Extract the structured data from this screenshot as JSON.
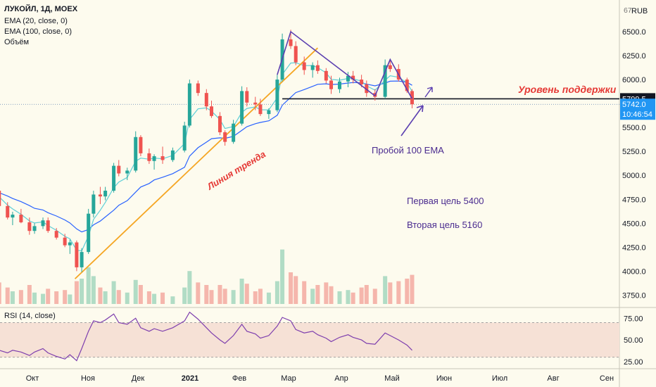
{
  "header": {
    "symbol_line": "ЛУКОЙЛ, 1Д, MOEX",
    "indicators": [
      "EMA (20, close, 0)",
      "EMA (100, close, 0)",
      "Объём"
    ],
    "currency": "RUB",
    "currency_prefix": "67"
  },
  "price_axis": {
    "ticks": [
      "6500.0",
      "6250.0",
      "6000.0",
      "5500.0",
      "5250.0",
      "5000.0",
      "4750.0",
      "4500.0",
      "4250.0",
      "4000.0",
      "3750.0"
    ],
    "support_label": "5799.5",
    "last_price": "5742.0",
    "countdown": "10:46:54"
  },
  "annotations": {
    "support_level": "Уровень поддержки",
    "trend_line": "Линия тренда",
    "ema_break": "Пробой 100 EMA",
    "target_1": "Первая цель 5400",
    "target_2": "Вторая цель 5160"
  },
  "rsi": {
    "label": "RSI (14, close)",
    "ticks": [
      "75.00",
      "50.00",
      "25.00"
    ]
  },
  "time_axis": {
    "labels": [
      "Окт",
      "Ноя",
      "Дек",
      "2021",
      "Фев",
      "Мар",
      "Апр",
      "Май",
      "Июн",
      "Июл",
      "Авг",
      "Сен"
    ]
  },
  "colors": {
    "background": "#fdfbee",
    "up_candle": "#26a69a",
    "down_candle": "#ef5350",
    "ema20": "#5fcfd7",
    "ema100": "#2962ff",
    "trend_line": "#f5a623",
    "support_line": "#131722",
    "annotation_purple": "#4a2b8f",
    "annotation_red": "#e53935",
    "rsi_line": "#7e3fae",
    "rsi_band": "#f6e1d6"
  },
  "chart_data": {
    "type": "candlestick",
    "price_axis": {
      "min": 3700,
      "max": 6700
    },
    "support_level": 5799.5,
    "last_price": 5742.0,
    "trend_line": {
      "from": {
        "date": "2020-11-01",
        "price": 3920
      },
      "to": {
        "date": "2021-03-25",
        "price": 6330
      }
    },
    "ohlc": [
      [
        "2020-09-14",
        4880,
        4920,
        4820,
        4840
      ],
      [
        "2020-09-17",
        4840,
        4870,
        4640,
        4680
      ],
      [
        "2020-09-22",
        4680,
        4720,
        4540,
        4560
      ],
      [
        "2020-09-25",
        4560,
        4620,
        4480,
        4590
      ],
      [
        "2020-09-30",
        4590,
        4650,
        4500,
        4510
      ],
      [
        "2020-10-05",
        4510,
        4560,
        4380,
        4420
      ],
      [
        "2020-10-08",
        4420,
        4500,
        4390,
        4470
      ],
      [
        "2020-10-13",
        4470,
        4560,
        4440,
        4530
      ],
      [
        "2020-10-16",
        4530,
        4560,
        4400,
        4420
      ],
      [
        "2020-10-21",
        4420,
        4450,
        4330,
        4350
      ],
      [
        "2020-10-26",
        4350,
        4390,
        4250,
        4270
      ],
      [
        "2020-10-29",
        4270,
        4330,
        4180,
        4300
      ],
      [
        "2020-11-02",
        4300,
        4320,
        4000,
        4040
      ],
      [
        "2020-11-05",
        4040,
        4240,
        3990,
        4200
      ],
      [
        "2020-11-09",
        4200,
        4650,
        4180,
        4600
      ],
      [
        "2020-11-12",
        4600,
        4840,
        4560,
        4800
      ],
      [
        "2020-11-16",
        4800,
        4880,
        4700,
        4780
      ],
      [
        "2020-11-19",
        4780,
        4880,
        4740,
        4840
      ],
      [
        "2020-11-24",
        4840,
        5130,
        4820,
        5100
      ],
      [
        "2020-11-27",
        5100,
        5160,
        4990,
        5020
      ],
      [
        "2020-12-02",
        5020,
        5080,
        4950,
        5050
      ],
      [
        "2020-12-07",
        5050,
        5460,
        5030,
        5400
      ],
      [
        "2020-12-10",
        5400,
        5420,
        5200,
        5230
      ],
      [
        "2020-12-15",
        5230,
        5280,
        5120,
        5150
      ],
      [
        "2020-12-18",
        5150,
        5220,
        5060,
        5200
      ],
      [
        "2020-12-23",
        5200,
        5300,
        5120,
        5160
      ],
      [
        "2020-12-29",
        5160,
        5290,
        5140,
        5260
      ],
      [
        "2021-01-05",
        5260,
        5560,
        5240,
        5520
      ],
      [
        "2021-01-08",
        5520,
        6000,
        5500,
        5960
      ],
      [
        "2021-01-13",
        5960,
        5990,
        5830,
        5860
      ],
      [
        "2021-01-18",
        5860,
        5900,
        5680,
        5720
      ],
      [
        "2021-01-21",
        5720,
        5780,
        5600,
        5620
      ],
      [
        "2021-01-26",
        5620,
        5660,
        5420,
        5450
      ],
      [
        "2021-01-29",
        5450,
        5470,
        5310,
        5350
      ],
      [
        "2021-02-03",
        5350,
        5580,
        5330,
        5540
      ],
      [
        "2021-02-08",
        5540,
        5930,
        5520,
        5880
      ],
      [
        "2021-02-11",
        5880,
        5920,
        5720,
        5760
      ],
      [
        "2021-02-16",
        5760,
        5820,
        5680,
        5740
      ],
      [
        "2021-02-19",
        5740,
        5800,
        5620,
        5640
      ],
      [
        "2021-02-24",
        5640,
        5700,
        5590,
        5680
      ],
      [
        "2021-03-01",
        5680,
        6050,
        5660,
        6000
      ],
      [
        "2021-03-04",
        6000,
        6480,
        5980,
        6420
      ],
      [
        "2021-03-09",
        6420,
        6520,
        6320,
        6350
      ],
      [
        "2021-03-12",
        6350,
        6400,
        6150,
        6180
      ],
      [
        "2021-03-17",
        6180,
        6240,
        6050,
        6100
      ],
      [
        "2021-03-22",
        6100,
        6180,
        6020,
        6150
      ],
      [
        "2021-03-25",
        6150,
        6200,
        6060,
        6090
      ],
      [
        "2021-03-30",
        6090,
        6120,
        5960,
        5990
      ],
      [
        "2021-04-02",
        5990,
        6040,
        5850,
        5900
      ],
      [
        "2021-04-07",
        5900,
        6020,
        5860,
        5980
      ],
      [
        "2021-04-12",
        5980,
        6080,
        5920,
        6040
      ],
      [
        "2021-04-15",
        6040,
        6090,
        5960,
        6000
      ],
      [
        "2021-04-20",
        6000,
        6050,
        5920,
        5950
      ],
      [
        "2021-04-23",
        5950,
        5990,
        5820,
        5860
      ],
      [
        "2021-04-28",
        5860,
        5900,
        5780,
        5820
      ],
      [
        "2021-05-04",
        5820,
        6210,
        5800,
        6150
      ],
      [
        "2021-05-07",
        6150,
        6200,
        6080,
        6110
      ],
      [
        "2021-05-12",
        6110,
        6160,
        5980,
        6000
      ],
      [
        "2021-05-17",
        6000,
        6020,
        5860,
        5880
      ],
      [
        "2021-05-20",
        5880,
        5900,
        5700,
        5742
      ]
    ],
    "volume_axis": {
      "min": 0,
      "max": 100
    },
    "volume": [
      [
        "2020-09-14",
        18,
        "down"
      ],
      [
        "2020-09-17",
        34,
        "down"
      ],
      [
        "2020-09-22",
        26,
        "down"
      ],
      [
        "2020-09-25",
        20,
        "up"
      ],
      [
        "2020-09-30",
        22,
        "down"
      ],
      [
        "2020-10-05",
        30,
        "down"
      ],
      [
        "2020-10-08",
        18,
        "up"
      ],
      [
        "2020-10-13",
        16,
        "up"
      ],
      [
        "2020-10-16",
        24,
        "down"
      ],
      [
        "2020-10-21",
        20,
        "down"
      ],
      [
        "2020-10-26",
        22,
        "down"
      ],
      [
        "2020-10-29",
        15,
        "up"
      ],
      [
        "2020-11-02",
        36,
        "down"
      ],
      [
        "2020-11-05",
        40,
        "up"
      ],
      [
        "2020-11-09",
        58,
        "up"
      ],
      [
        "2020-11-12",
        44,
        "up"
      ],
      [
        "2020-11-16",
        26,
        "down"
      ],
      [
        "2020-11-19",
        20,
        "up"
      ],
      [
        "2020-11-24",
        36,
        "up"
      ],
      [
        "2020-11-27",
        22,
        "down"
      ],
      [
        "2020-12-02",
        18,
        "up"
      ],
      [
        "2020-12-07",
        38,
        "up"
      ],
      [
        "2020-12-10",
        30,
        "down"
      ],
      [
        "2020-12-15",
        20,
        "down"
      ],
      [
        "2020-12-18",
        16,
        "up"
      ],
      [
        "2020-12-23",
        18,
        "down"
      ],
      [
        "2020-12-29",
        12,
        "up"
      ],
      [
        "2021-01-05",
        26,
        "up"
      ],
      [
        "2021-01-08",
        52,
        "up"
      ],
      [
        "2021-01-13",
        34,
        "down"
      ],
      [
        "2021-01-18",
        30,
        "down"
      ],
      [
        "2021-01-21",
        22,
        "down"
      ],
      [
        "2021-01-26",
        30,
        "down"
      ],
      [
        "2021-01-29",
        24,
        "down"
      ],
      [
        "2021-02-03",
        22,
        "up"
      ],
      [
        "2021-02-08",
        40,
        "up"
      ],
      [
        "2021-02-11",
        32,
        "down"
      ],
      [
        "2021-02-16",
        20,
        "down"
      ],
      [
        "2021-02-19",
        24,
        "down"
      ],
      [
        "2021-02-24",
        18,
        "up"
      ],
      [
        "2021-03-01",
        36,
        "up"
      ],
      [
        "2021-03-04",
        86,
        "up"
      ],
      [
        "2021-03-09",
        50,
        "down"
      ],
      [
        "2021-03-12",
        44,
        "down"
      ],
      [
        "2021-03-17",
        36,
        "down"
      ],
      [
        "2021-03-22",
        24,
        "up"
      ],
      [
        "2021-03-25",
        30,
        "down"
      ],
      [
        "2021-03-30",
        34,
        "down"
      ],
      [
        "2021-04-02",
        28,
        "down"
      ],
      [
        "2021-04-07",
        20,
        "up"
      ],
      [
        "2021-04-12",
        22,
        "up"
      ],
      [
        "2021-04-15",
        18,
        "down"
      ],
      [
        "2021-04-20",
        26,
        "down"
      ],
      [
        "2021-04-23",
        30,
        "down"
      ],
      [
        "2021-04-28",
        24,
        "down"
      ],
      [
        "2021-05-04",
        44,
        "up"
      ],
      [
        "2021-05-07",
        34,
        "down"
      ],
      [
        "2021-05-12",
        36,
        "down"
      ],
      [
        "2021-05-17",
        40,
        "down"
      ],
      [
        "2021-05-20",
        46,
        "down"
      ]
    ],
    "rsi_axis": {
      "min": 20,
      "max": 85
    },
    "rsi_band": [
      30,
      70
    ],
    "rsi_values": [
      [
        "2020-09-14",
        44
      ],
      [
        "2020-09-17",
        38
      ],
      [
        "2020-09-22",
        35
      ],
      [
        "2020-09-25",
        38
      ],
      [
        "2020-09-30",
        36
      ],
      [
        "2020-10-05",
        32
      ],
      [
        "2020-10-08",
        36
      ],
      [
        "2020-10-13",
        40
      ],
      [
        "2020-10-16",
        35
      ],
      [
        "2020-10-21",
        31
      ],
      [
        "2020-10-26",
        28
      ],
      [
        "2020-10-29",
        33
      ],
      [
        "2020-11-02",
        26
      ],
      [
        "2020-11-05",
        40
      ],
      [
        "2020-11-09",
        60
      ],
      [
        "2020-11-12",
        72
      ],
      [
        "2020-11-16",
        70
      ],
      [
        "2020-11-19",
        73
      ],
      [
        "2020-11-24",
        80
      ],
      [
        "2020-11-27",
        70
      ],
      [
        "2020-12-02",
        68
      ],
      [
        "2020-12-07",
        75
      ],
      [
        "2020-12-10",
        64
      ],
      [
        "2020-12-15",
        60
      ],
      [
        "2020-12-18",
        63
      ],
      [
        "2020-12-23",
        60
      ],
      [
        "2020-12-29",
        64
      ],
      [
        "2021-01-05",
        72
      ],
      [
        "2021-01-08",
        82
      ],
      [
        "2021-01-13",
        74
      ],
      [
        "2021-01-18",
        64
      ],
      [
        "2021-01-21",
        58
      ],
      [
        "2021-01-26",
        50
      ],
      [
        "2021-01-29",
        46
      ],
      [
        "2021-02-03",
        55
      ],
      [
        "2021-02-08",
        68
      ],
      [
        "2021-02-11",
        60
      ],
      [
        "2021-02-16",
        57
      ],
      [
        "2021-02-19",
        52
      ],
      [
        "2021-02-24",
        55
      ],
      [
        "2021-03-01",
        66
      ],
      [
        "2021-03-04",
        76
      ],
      [
        "2021-03-09",
        72
      ],
      [
        "2021-03-12",
        62
      ],
      [
        "2021-03-17",
        58
      ],
      [
        "2021-03-22",
        60
      ],
      [
        "2021-03-25",
        56
      ],
      [
        "2021-03-30",
        52
      ],
      [
        "2021-04-02",
        48
      ],
      [
        "2021-04-07",
        53
      ],
      [
        "2021-04-12",
        56
      ],
      [
        "2021-04-15",
        53
      ],
      [
        "2021-04-20",
        50
      ],
      [
        "2021-04-23",
        46
      ],
      [
        "2021-04-28",
        45
      ],
      [
        "2021-05-04",
        58
      ],
      [
        "2021-05-07",
        55
      ],
      [
        "2021-05-12",
        50
      ],
      [
        "2021-05-17",
        44
      ],
      [
        "2021-05-20",
        38
      ]
    ]
  }
}
